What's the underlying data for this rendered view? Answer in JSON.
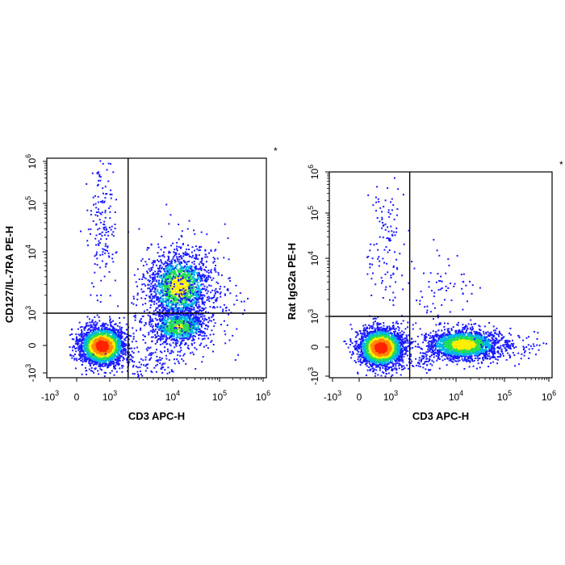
{
  "chart_data": [
    {
      "type": "scatter",
      "subtype": "flow-cytometry-density-dotplot",
      "xlabel": "CD3 APC-H",
      "ylabel": "CD127/IL-7RA PE-H",
      "scale": "biexponential",
      "x_ticks": [
        {
          "base": "-10",
          "exp": "3",
          "value": -1000
        },
        {
          "base": "0",
          "exp": "",
          "value": 0
        },
        {
          "base": "10",
          "exp": "3",
          "value": 1000
        },
        {
          "base": "10",
          "exp": "4",
          "value": 10000
        },
        {
          "base": "10",
          "exp": "5",
          "value": 100000
        },
        {
          "base": "10",
          "exp": "6",
          "value": 1000000
        }
      ],
      "y_ticks": [
        {
          "base": "-10",
          "exp": "3",
          "value": -1000
        },
        {
          "base": "0",
          "exp": "",
          "value": 0
        },
        {
          "base": "10",
          "exp": "3",
          "value": 1000
        },
        {
          "base": "10",
          "exp": "4",
          "value": 10000
        },
        {
          "base": "10",
          "exp": "5",
          "value": 100000
        },
        {
          "base": "10",
          "exp": "6",
          "value": 1000000
        }
      ],
      "quadrant_gate": {
        "x": 2000,
        "y": 1000
      },
      "marker": "*",
      "populations": [
        {
          "label": "CD3- CD127-",
          "x_center": 500,
          "y_center": 0,
          "density": "high"
        },
        {
          "label": "CD3+ CD127+",
          "x_center": 18000,
          "y_center": 3000,
          "density": "medium"
        },
        {
          "label": "CD3+ CD127-",
          "x_center": 18000,
          "y_center": 200,
          "density": "medium"
        }
      ]
    },
    {
      "type": "scatter",
      "subtype": "flow-cytometry-density-dotplot",
      "xlabel": "CD3 APC-H",
      "ylabel": "Rat IgG2a PE-H",
      "scale": "biexponential",
      "x_ticks": [
        {
          "base": "-10",
          "exp": "3",
          "value": -1000
        },
        {
          "base": "0",
          "exp": "",
          "value": 0
        },
        {
          "base": "10",
          "exp": "3",
          "value": 1000
        },
        {
          "base": "10",
          "exp": "4",
          "value": 10000
        },
        {
          "base": "10",
          "exp": "5",
          "value": 100000
        },
        {
          "base": "10",
          "exp": "6",
          "value": 1000000
        }
      ],
      "y_ticks": [
        {
          "base": "-10",
          "exp": "3",
          "value": -1000
        },
        {
          "base": "0",
          "exp": "",
          "value": 0
        },
        {
          "base": "10",
          "exp": "3",
          "value": 1000
        },
        {
          "base": "10",
          "exp": "4",
          "value": 10000
        },
        {
          "base": "10",
          "exp": "5",
          "value": 100000
        },
        {
          "base": "10",
          "exp": "6",
          "value": 1000000
        }
      ],
      "quadrant_gate": {
        "x": 2000,
        "y": 1000
      },
      "marker": "*",
      "populations": [
        {
          "label": "CD3- isotype-",
          "x_center": 400,
          "y_center": 0,
          "density": "high"
        },
        {
          "label": "CD3+ isotype-",
          "x_center": 14000,
          "y_center": 0,
          "density": "medium"
        }
      ]
    }
  ],
  "colors": {
    "density_low": "#1a1aff",
    "density_mid_low": "#00b4e6",
    "density_mid": "#22dd55",
    "density_mid_high": "#ffee00",
    "density_high": "#ff2200",
    "axis": "#000000"
  }
}
